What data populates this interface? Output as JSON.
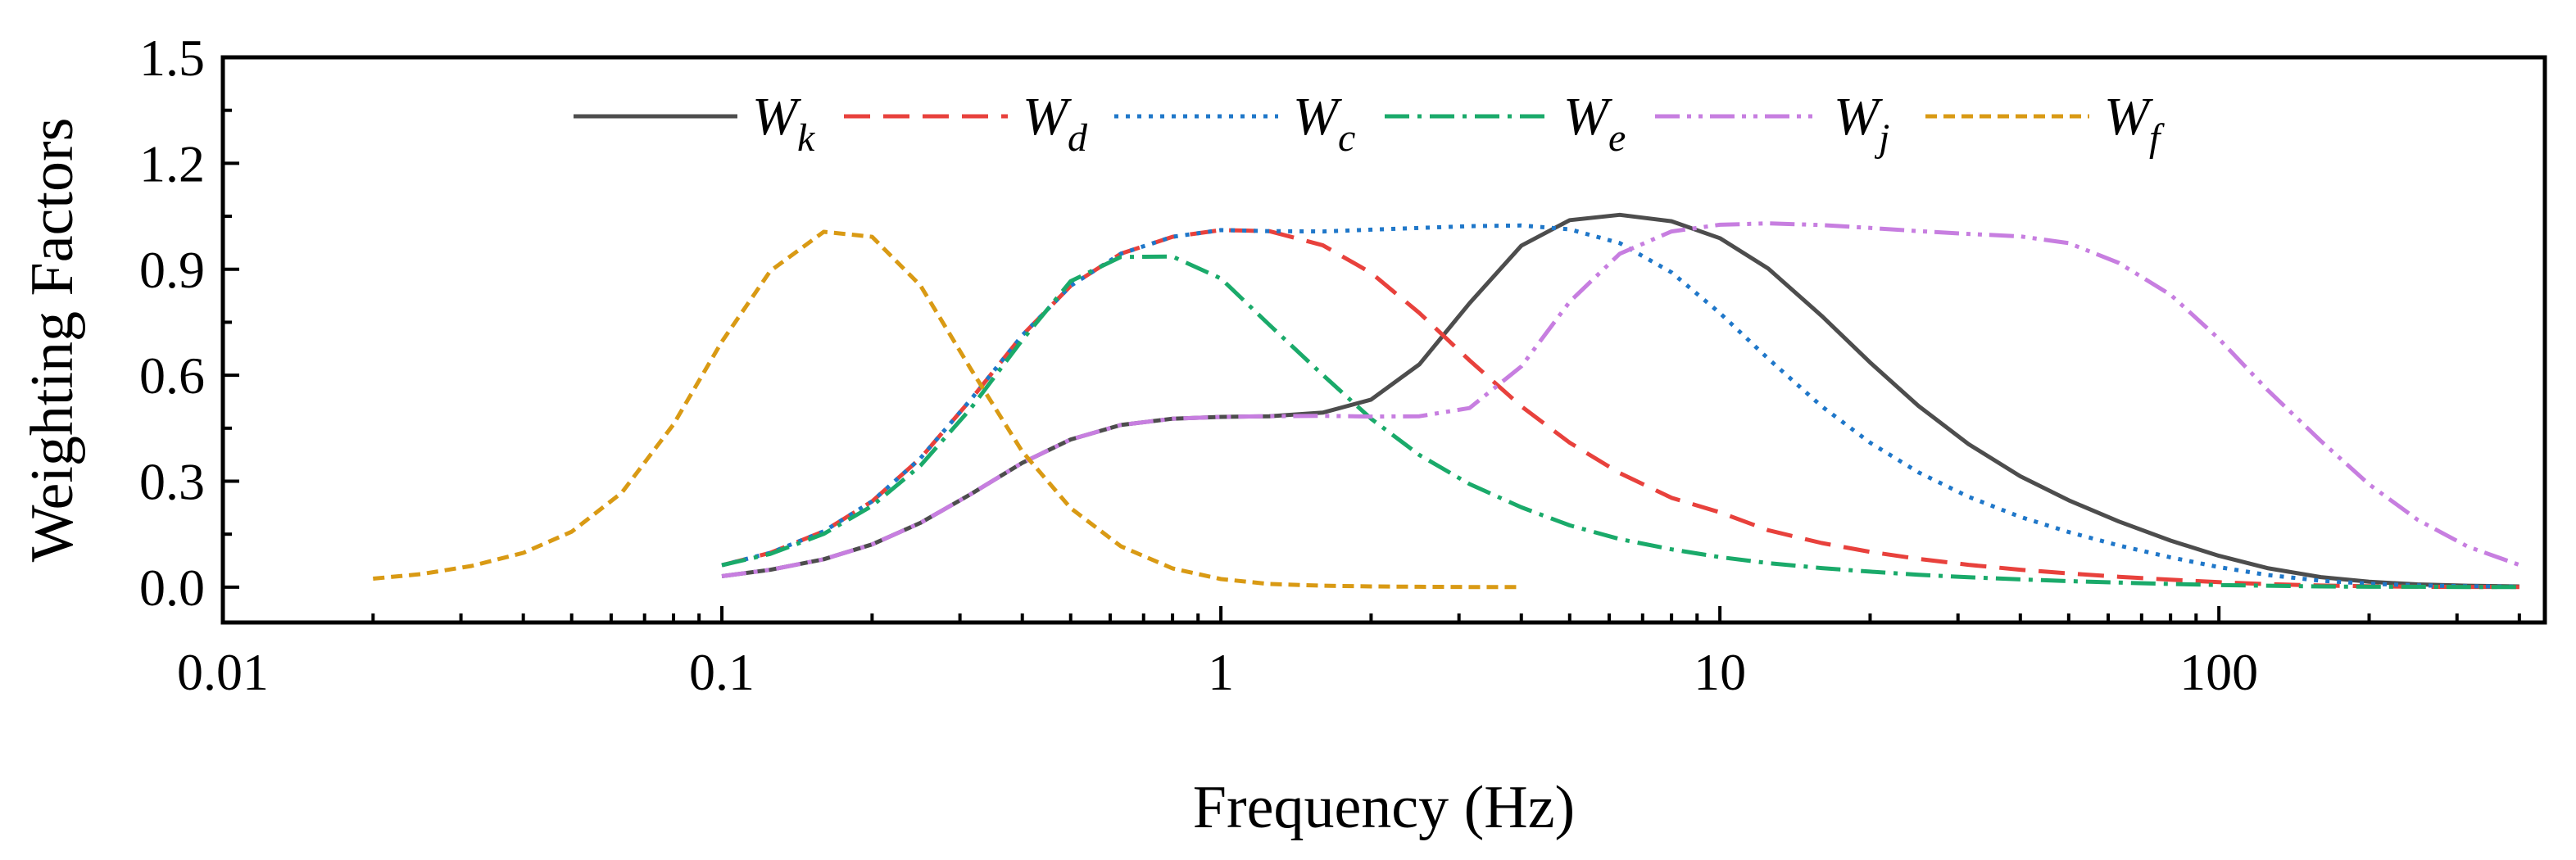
{
  "chart_data": {
    "type": "line",
    "xlabel": "Frequency (Hz)",
    "ylabel": "Weighting Factors",
    "xscale": "log",
    "xlim": [
      0.01,
      450
    ],
    "ylim": [
      -0.1,
      1.5
    ],
    "xticks": [
      0.01,
      0.1,
      1,
      10,
      100
    ],
    "xtick_labels": [
      "0.01",
      "0.1",
      "1",
      "10",
      "100"
    ],
    "yticks": [
      0.0,
      0.3,
      0.6,
      0.9,
      1.2,
      1.5
    ],
    "ytick_labels": [
      "0.0",
      "0.3",
      "0.6",
      "0.9",
      "1.2",
      "1.5"
    ],
    "grid": false,
    "legend_position": "top",
    "series": [
      {
        "name": "W",
        "sub": "k",
        "color": "#4d4d4d",
        "dash": "solid",
        "x": [
          0.1,
          0.125,
          0.16,
          0.2,
          0.25,
          0.315,
          0.4,
          0.5,
          0.63,
          0.8,
          1,
          1.25,
          1.6,
          2,
          2.5,
          3.15,
          4,
          5,
          6.3,
          8,
          10,
          12.5,
          16,
          20,
          25,
          31.5,
          40,
          50,
          63,
          80,
          100,
          125,
          160,
          200,
          250,
          315,
          400
        ],
        "y": [
          0.031,
          0.049,
          0.079,
          0.121,
          0.182,
          0.263,
          0.352,
          0.418,
          0.459,
          0.477,
          0.482,
          0.484,
          0.494,
          0.531,
          0.631,
          0.804,
          0.967,
          1.039,
          1.054,
          1.036,
          0.988,
          0.902,
          0.768,
          0.636,
          0.513,
          0.405,
          0.314,
          0.246,
          0.186,
          0.132,
          0.0887,
          0.054,
          0.0285,
          0.0152,
          0.0079,
          0.004,
          0.002
        ]
      },
      {
        "name": "W",
        "sub": "d",
        "color": "#e8413c",
        "dash": "dashed",
        "x": [
          0.1,
          0.125,
          0.16,
          0.2,
          0.25,
          0.315,
          0.4,
          0.5,
          0.63,
          0.8,
          1,
          1.25,
          1.6,
          2,
          2.5,
          3.15,
          4,
          5,
          6.3,
          8,
          10,
          12.5,
          16,
          20,
          25,
          31.5,
          40,
          50,
          63,
          80,
          100,
          125,
          160,
          200,
          250,
          315,
          400
        ],
        "y": [
          0.062,
          0.097,
          0.158,
          0.243,
          0.365,
          0.53,
          0.713,
          0.853,
          0.944,
          0.992,
          1.011,
          1.008,
          0.968,
          0.89,
          0.776,
          0.642,
          0.512,
          0.409,
          0.323,
          0.253,
          0.212,
          0.161,
          0.125,
          0.1,
          0.08,
          0.0632,
          0.0494,
          0.0388,
          0.0295,
          0.0211,
          0.0141,
          0.0086,
          0.0046,
          0.0024,
          0.0012,
          0.0006,
          0.0003
        ]
      },
      {
        "name": "W",
        "sub": "c",
        "color": "#1f77c9",
        "dash": "dotted",
        "x": [
          0.1,
          0.125,
          0.16,
          0.2,
          0.25,
          0.315,
          0.4,
          0.5,
          0.63,
          0.8,
          1,
          1.25,
          1.6,
          2,
          2.5,
          3.15,
          4,
          5,
          6.3,
          8,
          10,
          12.5,
          16,
          20,
          25,
          31.5,
          40,
          50,
          63,
          80,
          100,
          125,
          160,
          200,
          250,
          315,
          400
        ],
        "y": [
          0.062,
          0.097,
          0.158,
          0.243,
          0.365,
          0.53,
          0.713,
          0.853,
          0.944,
          0.992,
          1.011,
          1.008,
          1.007,
          1.012,
          1.017,
          1.022,
          1.024,
          1.013,
          0.974,
          0.891,
          0.776,
          0.647,
          0.512,
          0.409,
          0.325,
          0.256,
          0.199,
          0.156,
          0.118,
          0.0844,
          0.0567,
          0.0344,
          0.0182,
          0.0096,
          0.005,
          0.0025,
          0.0013
        ]
      },
      {
        "name": "W",
        "sub": "e",
        "color": "#1aaa6a",
        "dash": "dashdot",
        "x": [
          0.1,
          0.125,
          0.16,
          0.2,
          0.25,
          0.315,
          0.4,
          0.5,
          0.63,
          0.8,
          1,
          1.25,
          1.6,
          2,
          2.5,
          3.15,
          4,
          5,
          6.3,
          8,
          10,
          12.5,
          16,
          20,
          25,
          31.5,
          40,
          50,
          63,
          80,
          100,
          125,
          160,
          200,
          250,
          315,
          400
        ],
        "y": [
          0.062,
          0.094,
          0.151,
          0.23,
          0.344,
          0.505,
          0.7,
          0.866,
          0.935,
          0.936,
          0.874,
          0.743,
          0.601,
          0.477,
          0.374,
          0.292,
          0.226,
          0.175,
          0.136,
          0.107,
          0.085,
          0.068,
          0.054,
          0.044,
          0.035,
          0.028,
          0.022,
          0.017,
          0.013,
          0.009,
          0.006,
          0.004,
          0.002,
          0.001,
          0.001,
          0.0005,
          0.0002
        ]
      },
      {
        "name": "W",
        "sub": "j",
        "color": "#c77ee0",
        "dash": "dashdotdot",
        "x": [
          0.1,
          0.125,
          0.16,
          0.2,
          0.25,
          0.315,
          0.4,
          0.5,
          0.63,
          0.8,
          1,
          1.25,
          1.6,
          2,
          2.5,
          3.15,
          4,
          5,
          6.3,
          8,
          10,
          12.5,
          16,
          20,
          25,
          31.5,
          40,
          50,
          63,
          80,
          100,
          125,
          160,
          200,
          250,
          315,
          400
        ],
        "y": [
          0.031,
          0.049,
          0.079,
          0.121,
          0.182,
          0.263,
          0.352,
          0.418,
          0.459,
          0.477,
          0.482,
          0.484,
          0.485,
          0.483,
          0.484,
          0.507,
          0.625,
          0.808,
          0.944,
          1.007,
          1.026,
          1.03,
          1.025,
          1.017,
          1.008,
          1.0,
          0.993,
          0.974,
          0.918,
          0.828,
          0.703,
          0.559,
          0.414,
          0.291,
          0.191,
          0.115,
          0.063
        ]
      },
      {
        "name": "W",
        "sub": "f",
        "color": "#d99a14",
        "dash": "shortdash",
        "x": [
          0.02,
          0.025,
          0.0315,
          0.04,
          0.05,
          0.063,
          0.08,
          0.1,
          0.125,
          0.16,
          0.2,
          0.25,
          0.315,
          0.4,
          0.5,
          0.63,
          0.8,
          1,
          1.25,
          1.6,
          2,
          2.5,
          3.15,
          4
        ],
        "y": [
          0.024,
          0.037,
          0.06,
          0.097,
          0.157,
          0.267,
          0.461,
          0.695,
          0.895,
          1.006,
          0.992,
          0.854,
          0.619,
          0.384,
          0.224,
          0.116,
          0.053,
          0.023,
          0.009,
          0.004,
          0.002,
          0.001,
          0.0005,
          0.0002
        ]
      }
    ]
  }
}
